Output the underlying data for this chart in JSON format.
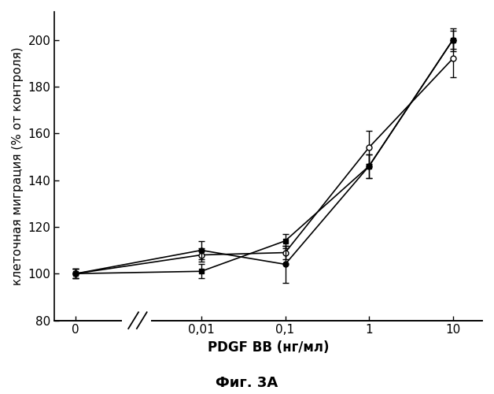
{
  "series": [
    {
      "label": "filled_square",
      "x_idx": [
        0,
        1,
        2,
        3,
        4
      ],
      "y": [
        100,
        101,
        114,
        146,
        200
      ],
      "yerr": [
        2,
        3,
        3,
        5,
        4
      ],
      "marker": "s",
      "filled": true,
      "linestyle": "-",
      "color": "#000000",
      "zorder": 4
    },
    {
      "label": "open_circle",
      "x_idx": [
        0,
        1,
        2,
        3,
        4
      ],
      "y": [
        100,
        108,
        109,
        154,
        192
      ],
      "yerr": [
        2,
        3,
        3,
        7,
        8
      ],
      "marker": "o",
      "filled": false,
      "linestyle": "-",
      "color": "#000000",
      "zorder": 3
    },
    {
      "label": "filled_circle",
      "x_idx": [
        0,
        1,
        2,
        3,
        4
      ],
      "y": [
        100,
        110,
        104,
        146,
        200
      ],
      "yerr": [
        2,
        4,
        8,
        5,
        5
      ],
      "marker": "o",
      "filled": true,
      "linestyle": "-",
      "color": "#000000",
      "zorder": 5
    }
  ],
  "x_positions": [
    0.0,
    1.5,
    2.5,
    3.5,
    4.5
  ],
  "xtick_labels": [
    "0",
    "0,01",
    "0,1",
    "1",
    "10"
  ],
  "ytick_positions": [
    80,
    100,
    120,
    140,
    160,
    180,
    200
  ],
  "ytick_labels": [
    "80",
    "100",
    "120",
    "140",
    "160",
    "180",
    "200"
  ],
  "xlabel": "PDGF BB (нг/мл)",
  "ylabel": "клеточная миграция (% от контроля)",
  "title": "Фиг. 3A",
  "ylim_bottom": 80,
  "ylim_top": 212,
  "xlim_left": -0.25,
  "xlim_right": 4.85
}
